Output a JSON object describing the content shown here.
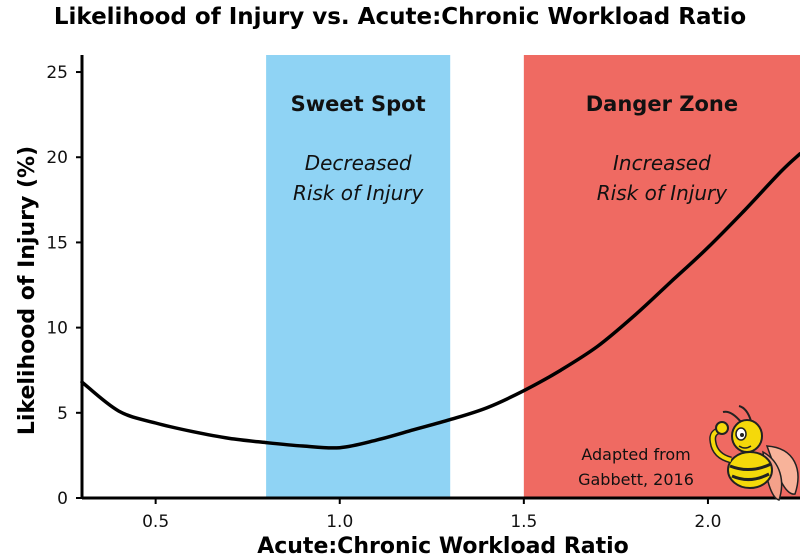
{
  "title": "Likelihood of Injury vs. Acute:Chronic Workload Ratio",
  "colors": {
    "sweet_spot": "#8fd3f4",
    "danger_zone": "#ef6a62",
    "curve": "#000000",
    "mascot_body": "#f5d90a",
    "mascot_outline": "#222222"
  },
  "chart_data": {
    "type": "line",
    "title": "Likelihood of Injury vs. Acute:Chronic Workload Ratio",
    "xlabel": "Acute:Chronic Workload Ratio",
    "ylabel": "Likelihood of Injury (%)",
    "xlim": [
      0.3,
      2.25
    ],
    "ylim": [
      0,
      26
    ],
    "x_ticks": [
      0.5,
      1.0,
      1.5,
      2.0
    ],
    "x_tick_labels": [
      "0.5",
      "1.0",
      "1.5",
      "2.0"
    ],
    "y_ticks": [
      0,
      5,
      10,
      15,
      20,
      25
    ],
    "y_tick_labels": [
      "0",
      "5",
      "10",
      "15",
      "20",
      "25"
    ],
    "grid": false,
    "series": [
      {
        "x": [
          0.3,
          0.4,
          0.5,
          0.6,
          0.7,
          0.8,
          0.9,
          1.0,
          1.1,
          1.2,
          1.3,
          1.4,
          1.5,
          1.6,
          1.7,
          1.8,
          1.9,
          2.0,
          2.1,
          2.2,
          2.25
        ],
        "values": [
          6.8,
          5.1,
          4.4,
          3.9,
          3.5,
          3.25,
          3.05,
          2.95,
          3.4,
          4.0,
          4.6,
          5.3,
          6.3,
          7.5,
          8.9,
          10.7,
          12.7,
          14.7,
          16.9,
          19.2,
          20.2
        ]
      }
    ],
    "regions": [
      {
        "x_range": [
          0.8,
          1.3
        ],
        "title": "Sweet Spot",
        "subtitle_lines": [
          "Decreased",
          "Risk of Injury"
        ]
      },
      {
        "x_range": [
          1.5,
          2.25
        ],
        "title": "Danger Zone",
        "subtitle_lines": [
          "Increased",
          "Risk of Injury"
        ]
      }
    ],
    "annotation_lines": [
      "Adapted from",
      "Gabbett, 2016"
    ]
  }
}
